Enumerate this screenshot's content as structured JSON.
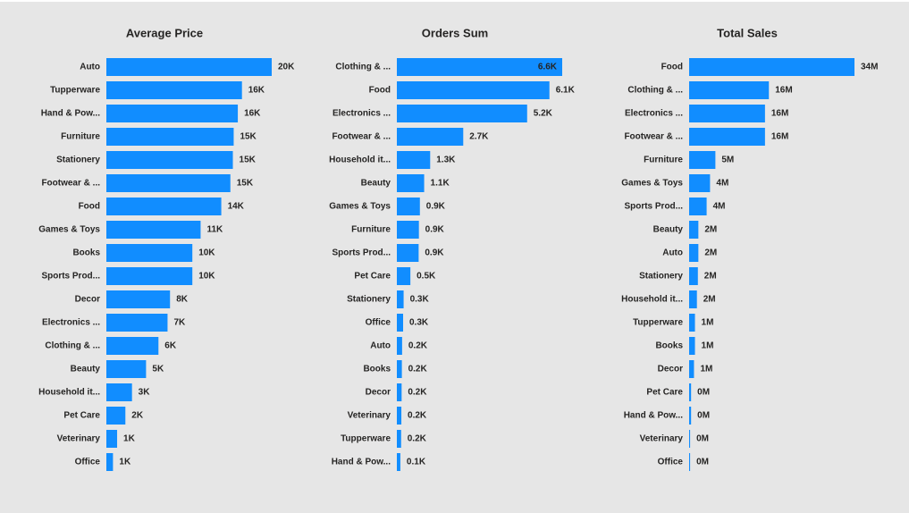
{
  "chart_data": [
    {
      "type": "bar",
      "orientation": "horizontal",
      "title": "Average Price",
      "color": "#118dff",
      "categories": [
        "Auto",
        "Tupperware",
        "Hand & Pow...",
        "Furniture",
        "Stationery",
        "Footwear & ...",
        "Food",
        "Games & Toys",
        "Books",
        "Sports Prod...",
        "Decor",
        "Electronics ...",
        "Clothing & ...",
        "Beauty",
        "Household it...",
        "Pet Care",
        "Veterinary",
        "Office"
      ],
      "values": [
        20000,
        16400,
        15900,
        15400,
        15300,
        15000,
        13900,
        11400,
        10400,
        10400,
        7700,
        7400,
        6300,
        4800,
        3100,
        2300,
        1300,
        800
      ],
      "value_labels": [
        "20K",
        "16K",
        "16K",
        "15K",
        "15K",
        "15K",
        "14K",
        "11K",
        "10K",
        "10K",
        "8K",
        "7K",
        "6K",
        "5K",
        "3K",
        "2K",
        "1K",
        "1K"
      ]
    },
    {
      "type": "bar",
      "orientation": "horizontal",
      "title": "Orders Sum",
      "color": "#118dff",
      "categories": [
        "Clothing & ...",
        "Food",
        "Electronics ...",
        "Footwear & ...",
        "Household it...",
        "Beauty",
        "Games & Toys",
        "Furniture",
        "Sports Prod...",
        "Pet Care",
        "Stationery",
        "Office",
        "Auto",
        "Books",
        "Decor",
        "Veterinary",
        "Tupperware",
        "Hand & Pow..."
      ],
      "values": [
        6600,
        6090,
        5200,
        2650,
        1330,
        1090,
        920,
        880,
        870,
        540,
        270,
        250,
        210,
        200,
        190,
        180,
        170,
        140
      ],
      "value_labels": [
        "6.6K",
        "6.1K",
        "5.2K",
        "2.7K",
        "1.3K",
        "1.1K",
        "0.9K",
        "0.9K",
        "0.9K",
        "0.5K",
        "0.3K",
        "0.3K",
        "0.2K",
        "0.2K",
        "0.2K",
        "0.2K",
        "0.2K",
        "0.1K"
      ]
    },
    {
      "type": "bar",
      "orientation": "horizontal",
      "title": "Total Sales",
      "color": "#118dff",
      "categories": [
        "Food",
        "Clothing & ...",
        "Electronics ...",
        "Footwear & ...",
        "Furniture",
        "Games & Toys",
        "Sports Prod...",
        "Beauty",
        "Auto",
        "Stationery",
        "Household it...",
        "Tupperware",
        "Books",
        "Decor",
        "Pet Care",
        "Hand & Pow...",
        "Veterinary",
        "Office"
      ],
      "values": [
        34000000,
        16400000,
        15600000,
        15600000,
        5400000,
        4300000,
        3600000,
        1900000,
        1900000,
        1800000,
        1600000,
        1200000,
        1200000,
        1000000,
        400000,
        400000,
        200000,
        200000
      ],
      "value_labels": [
        "34M",
        "16M",
        "16M",
        "16M",
        "5M",
        "4M",
        "4M",
        "2M",
        "2M",
        "2M",
        "2M",
        "1M",
        "1M",
        "1M",
        "0M",
        "0M",
        "0M",
        "0M"
      ]
    }
  ]
}
